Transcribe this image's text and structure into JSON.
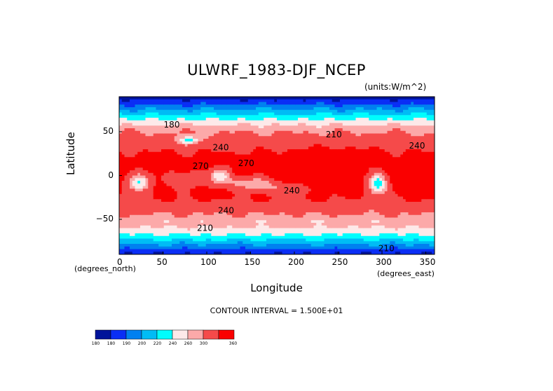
{
  "chart_data": {
    "type": "heatmap",
    "title": "ULWRF_1983-DJF_NCEP",
    "units": "(units:W/m^2)",
    "xlabel": "Longitude",
    "ylabel": "Latitude",
    "x_note_left": "(degrees_north)",
    "x_note_right": "(degrees_east)",
    "xlim": [
      0,
      360
    ],
    "ylim": [
      -90,
      90
    ],
    "x_ticks": [
      "0",
      "50",
      "100",
      "150",
      "200",
      "250",
      "300",
      "350"
    ],
    "x_tick_values": [
      0,
      50,
      100,
      150,
      200,
      250,
      300,
      350
    ],
    "y_ticks": [
      "50",
      "0",
      "−50"
    ],
    "y_tick_values": [
      50,
      0,
      -50
    ],
    "contour_interval_text": "CONTOUR INTERVAL = 1.500E+01",
    "contour_labels": [
      {
        "text": "180",
        "x": 60,
        "y": 58
      },
      {
        "text": "210",
        "x": 245,
        "y": 47
      },
      {
        "text": "240",
        "x": 116,
        "y": 32
      },
      {
        "text": "270",
        "x": 93,
        "y": 11
      },
      {
        "text": "270",
        "x": 145,
        "y": 14
      },
      {
        "text": "240",
        "x": 197,
        "y": -17
      },
      {
        "text": "240",
        "x": 122,
        "y": -40
      },
      {
        "text": "210",
        "x": 98,
        "y": -60
      },
      {
        "text": "210",
        "x": 305,
        "y": -83
      },
      {
        "text": "240",
        "x": 340,
        "y": 34
      }
    ],
    "colorbar": {
      "levels": [
        "180",
        "180",
        "190",
        "200",
        "220",
        "240",
        "260",
        "300",
        "360"
      ],
      "colors": [
        "#00139a",
        "#0a2ef5",
        "#0080f0",
        "#00bcf5",
        "#00fdfd",
        "#fde9e9",
        "#fca9a9",
        "#f54a4a",
        "#fa0000"
      ]
    }
  }
}
